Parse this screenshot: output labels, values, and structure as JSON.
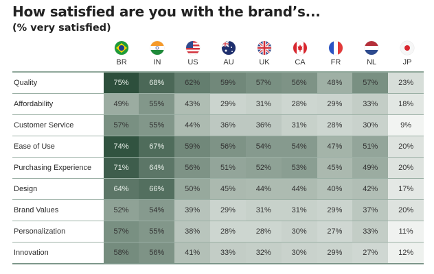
{
  "title": "How satisfied are you with the brand’s...",
  "subtitle": "(% very satisfied)",
  "countries": [
    {
      "code": "BR",
      "flag": "brazil-flag"
    },
    {
      "code": "IN",
      "flag": "india-flag"
    },
    {
      "code": "US",
      "flag": "usa-flag"
    },
    {
      "code": "AU",
      "flag": "australia-flag"
    },
    {
      "code": "UK",
      "flag": "uk-flag"
    },
    {
      "code": "CA",
      "flag": "canada-flag"
    },
    {
      "code": "FR",
      "flag": "france-flag"
    },
    {
      "code": "NL",
      "flag": "netherlands-flag"
    },
    {
      "code": "JP",
      "flag": "japan-flag"
    }
  ],
  "rows": [
    {
      "label": "Quality",
      "values": [
        "75%",
        "68%",
        "62%",
        "59%",
        "57%",
        "56%",
        "48%",
        "57%",
        "23%"
      ]
    },
    {
      "label": "Affordability",
      "values": [
        "49%",
        "55%",
        "43%",
        "29%",
        "31%",
        "28%",
        "29%",
        "33%",
        "18%"
      ]
    },
    {
      "label": "Customer Service",
      "values": [
        "57%",
        "55%",
        "44%",
        "36%",
        "36%",
        "31%",
        "28%",
        "30%",
        "9%"
      ]
    },
    {
      "label": "Ease of Use",
      "values": [
        "74%",
        "67%",
        "59%",
        "56%",
        "54%",
        "54%",
        "47%",
        "51%",
        "20%"
      ]
    },
    {
      "label": "Purchasing Experience",
      "values": [
        "71%",
        "64%",
        "56%",
        "51%",
        "52%",
        "53%",
        "45%",
        "49%",
        "20%"
      ]
    },
    {
      "label": "Design",
      "values": [
        "64%",
        "66%",
        "50%",
        "45%",
        "44%",
        "44%",
        "40%",
        "42%",
        "17%"
      ]
    },
    {
      "label": "Brand Values",
      "values": [
        "52%",
        "54%",
        "39%",
        "29%",
        "31%",
        "31%",
        "29%",
        "37%",
        "20%"
      ]
    },
    {
      "label": "Personalization",
      "values": [
        "57%",
        "55%",
        "38%",
        "28%",
        "28%",
        "30%",
        "27%",
        "33%",
        "11%"
      ]
    },
    {
      "label": "Innovation",
      "values": [
        "58%",
        "56%",
        "41%",
        "33%",
        "32%",
        "30%",
        "29%",
        "27%",
        "12%"
      ]
    }
  ],
  "chart_data": {
    "type": "heatmap",
    "title": "How satisfied are you with the brand’s...",
    "subtitle": "(% very satisfied)",
    "x": [
      "BR",
      "IN",
      "US",
      "AU",
      "UK",
      "CA",
      "FR",
      "NL",
      "JP"
    ],
    "y": [
      "Quality",
      "Affordability",
      "Customer Service",
      "Ease of Use",
      "Purchasing Experience",
      "Design",
      "Brand Values",
      "Personalization",
      "Innovation"
    ],
    "values": [
      [
        75,
        68,
        62,
        59,
        57,
        56,
        48,
        57,
        23
      ],
      [
        49,
        55,
        43,
        29,
        31,
        28,
        29,
        33,
        18
      ],
      [
        57,
        55,
        44,
        36,
        36,
        31,
        28,
        30,
        9
      ],
      [
        74,
        67,
        59,
        56,
        54,
        54,
        47,
        51,
        20
      ],
      [
        71,
        64,
        56,
        51,
        52,
        53,
        45,
        49,
        20
      ],
      [
        64,
        66,
        50,
        45,
        44,
        44,
        40,
        42,
        17
      ],
      [
        52,
        54,
        39,
        29,
        31,
        31,
        29,
        37,
        20
      ],
      [
        57,
        55,
        38,
        28,
        28,
        30,
        27,
        33,
        11
      ],
      [
        58,
        56,
        41,
        33,
        32,
        30,
        29,
        27,
        12
      ]
    ],
    "unit": "%",
    "color_scale": {
      "low": "#f2f4f2",
      "mid": "#a9b8ae",
      "high": "#2d4f3c"
    }
  }
}
